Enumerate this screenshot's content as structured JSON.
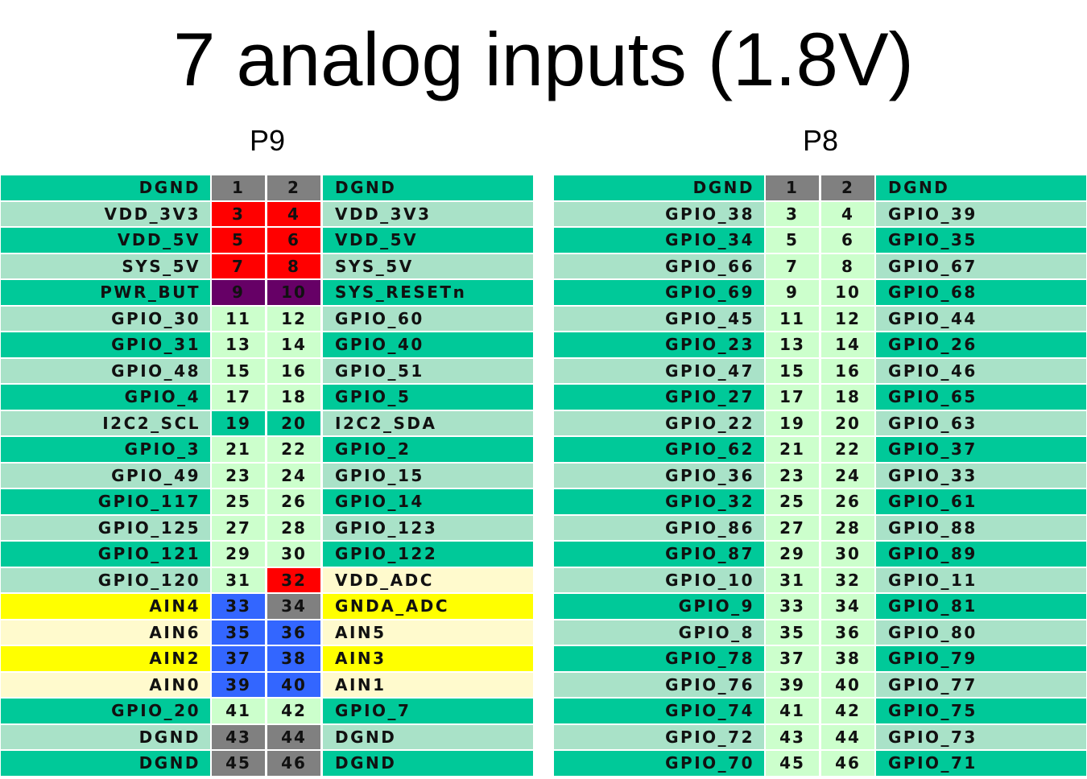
{
  "title": "7 analog inputs (1.8V)",
  "colors": {
    "A": "#00c999",
    "B": "#a9e2c8",
    "C": "#fffacd",
    "Y": "#ffff00",
    "G": "#808080",
    "R": "#ff0000",
    "P": "#660066",
    "U": "#3366ff",
    "L": "#ccffcc"
  },
  "headers": [
    {
      "label": "P9"
    },
    {
      "label": "P8"
    }
  ],
  "headers_p9": "P9",
  "headers_p8": "P8",
  "p9": [
    {
      "l": "DGND",
      "a": "1",
      "b": "2",
      "r": "DGND",
      "lc": "A",
      "ac": "G",
      "bc": "G",
      "rc": "A"
    },
    {
      "l": "VDD_3V3",
      "a": "3",
      "b": "4",
      "r": "VDD_3V3",
      "lc": "B",
      "ac": "R",
      "bc": "R",
      "rc": "B"
    },
    {
      "l": "VDD_5V",
      "a": "5",
      "b": "6",
      "r": "VDD_5V",
      "lc": "A",
      "ac": "R",
      "bc": "R",
      "rc": "A"
    },
    {
      "l": "SYS_5V",
      "a": "7",
      "b": "8",
      "r": "SYS_5V",
      "lc": "B",
      "ac": "R",
      "bc": "R",
      "rc": "B"
    },
    {
      "l": "PWR_BUT",
      "a": "9",
      "b": "10",
      "r": "SYS_RESETn",
      "lc": "A",
      "ac": "P",
      "bc": "P",
      "rc": "A"
    },
    {
      "l": "GPIO_30",
      "a": "11",
      "b": "12",
      "r": "GPIO_60",
      "lc": "B",
      "ac": "L",
      "bc": "L",
      "rc": "B"
    },
    {
      "l": "GPIO_31",
      "a": "13",
      "b": "14",
      "r": "GPIO_40",
      "lc": "A",
      "ac": "L",
      "bc": "L",
      "rc": "A"
    },
    {
      "l": "GPIO_48",
      "a": "15",
      "b": "16",
      "r": "GPIO_51",
      "lc": "B",
      "ac": "L",
      "bc": "L",
      "rc": "B"
    },
    {
      "l": "GPIO_4",
      "a": "17",
      "b": "18",
      "r": "GPIO_5",
      "lc": "A",
      "ac": "L",
      "bc": "L",
      "rc": "A"
    },
    {
      "l": "I2C2_SCL",
      "a": "19",
      "b": "20",
      "r": "I2C2_SDA",
      "lc": "B",
      "ac": "A",
      "bc": "A",
      "rc": "B"
    },
    {
      "l": "GPIO_3",
      "a": "21",
      "b": "22",
      "r": "GPIO_2",
      "lc": "A",
      "ac": "L",
      "bc": "L",
      "rc": "A"
    },
    {
      "l": "GPIO_49",
      "a": "23",
      "b": "24",
      "r": "GPIO_15",
      "lc": "B",
      "ac": "L",
      "bc": "L",
      "rc": "B"
    },
    {
      "l": "GPIO_117",
      "a": "25",
      "b": "26",
      "r": "GPIO_14",
      "lc": "A",
      "ac": "L",
      "bc": "L",
      "rc": "A"
    },
    {
      "l": "GPIO_125",
      "a": "27",
      "b": "28",
      "r": "GPIO_123",
      "lc": "B",
      "ac": "L",
      "bc": "L",
      "rc": "B"
    },
    {
      "l": "GPIO_121",
      "a": "29",
      "b": "30",
      "r": "GPIO_122",
      "lc": "A",
      "ac": "L",
      "bc": "L",
      "rc": "A"
    },
    {
      "l": "GPIO_120",
      "a": "31",
      "b": "32",
      "r": "VDD_ADC",
      "lc": "B",
      "ac": "L",
      "bc": "R",
      "rc": "C"
    },
    {
      "l": "AIN4",
      "a": "33",
      "b": "34",
      "r": "GNDA_ADC",
      "lc": "Y",
      "ac": "U",
      "bc": "G",
      "rc": "Y"
    },
    {
      "l": "AIN6",
      "a": "35",
      "b": "36",
      "r": "AIN5",
      "lc": "C",
      "ac": "U",
      "bc": "U",
      "rc": "C"
    },
    {
      "l": "AIN2",
      "a": "37",
      "b": "38",
      "r": "AIN3",
      "lc": "Y",
      "ac": "U",
      "bc": "U",
      "rc": "Y"
    },
    {
      "l": "AIN0",
      "a": "39",
      "b": "40",
      "r": "AIN1",
      "lc": "C",
      "ac": "U",
      "bc": "U",
      "rc": "C"
    },
    {
      "l": "GPIO_20",
      "a": "41",
      "b": "42",
      "r": "GPIO_7",
      "lc": "A",
      "ac": "L",
      "bc": "L",
      "rc": "A"
    },
    {
      "l": "DGND",
      "a": "43",
      "b": "44",
      "r": "DGND",
      "lc": "B",
      "ac": "G",
      "bc": "G",
      "rc": "B"
    },
    {
      "l": "DGND",
      "a": "45",
      "b": "46",
      "r": "DGND",
      "lc": "A",
      "ac": "G",
      "bc": "G",
      "rc": "A"
    }
  ],
  "p8": [
    {
      "l": "DGND",
      "a": "1",
      "b": "2",
      "r": "DGND",
      "lc": "A",
      "ac": "G",
      "bc": "G",
      "rc": "A"
    },
    {
      "l": "GPIO_38",
      "a": "3",
      "b": "4",
      "r": "GPIO_39",
      "lc": "B",
      "ac": "L",
      "bc": "L",
      "rc": "B"
    },
    {
      "l": "GPIO_34",
      "a": "5",
      "b": "6",
      "r": "GPIO_35",
      "lc": "A",
      "ac": "L",
      "bc": "L",
      "rc": "A"
    },
    {
      "l": "GPIO_66",
      "a": "7",
      "b": "8",
      "r": "GPIO_67",
      "lc": "B",
      "ac": "L",
      "bc": "L",
      "rc": "B"
    },
    {
      "l": "GPIO_69",
      "a": "9",
      "b": "10",
      "r": "GPIO_68",
      "lc": "A",
      "ac": "L",
      "bc": "L",
      "rc": "A"
    },
    {
      "l": "GPIO_45",
      "a": "11",
      "b": "12",
      "r": "GPIO_44",
      "lc": "B",
      "ac": "L",
      "bc": "L",
      "rc": "B"
    },
    {
      "l": "GPIO_23",
      "a": "13",
      "b": "14",
      "r": "GPIO_26",
      "lc": "A",
      "ac": "L",
      "bc": "L",
      "rc": "A"
    },
    {
      "l": "GPIO_47",
      "a": "15",
      "b": "16",
      "r": "GPIO_46",
      "lc": "B",
      "ac": "L",
      "bc": "L",
      "rc": "B"
    },
    {
      "l": "GPIO_27",
      "a": "17",
      "b": "18",
      "r": "GPIO_65",
      "lc": "A",
      "ac": "L",
      "bc": "L",
      "rc": "A"
    },
    {
      "l": "GPIO_22",
      "a": "19",
      "b": "20",
      "r": "GPIO_63",
      "lc": "B",
      "ac": "L",
      "bc": "L",
      "rc": "B"
    },
    {
      "l": "GPIO_62",
      "a": "21",
      "b": "22",
      "r": "GPIO_37",
      "lc": "A",
      "ac": "L",
      "bc": "L",
      "rc": "A"
    },
    {
      "l": "GPIO_36",
      "a": "23",
      "b": "24",
      "r": "GPIO_33",
      "lc": "B",
      "ac": "L",
      "bc": "L",
      "rc": "B"
    },
    {
      "l": "GPIO_32",
      "a": "25",
      "b": "26",
      "r": "GPIO_61",
      "lc": "A",
      "ac": "L",
      "bc": "L",
      "rc": "A"
    },
    {
      "l": "GPIO_86",
      "a": "27",
      "b": "28",
      "r": "GPIO_88",
      "lc": "B",
      "ac": "L",
      "bc": "L",
      "rc": "B"
    },
    {
      "l": "GPIO_87",
      "a": "29",
      "b": "30",
      "r": "GPIO_89",
      "lc": "A",
      "ac": "L",
      "bc": "L",
      "rc": "A"
    },
    {
      "l": "GPIO_10",
      "a": "31",
      "b": "32",
      "r": "GPIO_11",
      "lc": "B",
      "ac": "L",
      "bc": "L",
      "rc": "B"
    },
    {
      "l": "GPIO_9",
      "a": "33",
      "b": "34",
      "r": "GPIO_81",
      "lc": "A",
      "ac": "L",
      "bc": "L",
      "rc": "A"
    },
    {
      "l": "GPIO_8",
      "a": "35",
      "b": "36",
      "r": "GPIO_80",
      "lc": "B",
      "ac": "L",
      "bc": "L",
      "rc": "B"
    },
    {
      "l": "GPIO_78",
      "a": "37",
      "b": "38",
      "r": "GPIO_79",
      "lc": "A",
      "ac": "L",
      "bc": "L",
      "rc": "A"
    },
    {
      "l": "GPIO_76",
      "a": "39",
      "b": "40",
      "r": "GPIO_77",
      "lc": "B",
      "ac": "L",
      "bc": "L",
      "rc": "B"
    },
    {
      "l": "GPIO_74",
      "a": "41",
      "b": "42",
      "r": "GPIO_75",
      "lc": "A",
      "ac": "L",
      "bc": "L",
      "rc": "A"
    },
    {
      "l": "GPIO_72",
      "a": "43",
      "b": "44",
      "r": "GPIO_73",
      "lc": "B",
      "ac": "L",
      "bc": "L",
      "rc": "B"
    },
    {
      "l": "GPIO_70",
      "a": "45",
      "b": "46",
      "r": "GPIO_71",
      "lc": "A",
      "ac": "L",
      "bc": "L",
      "rc": "A"
    }
  ]
}
